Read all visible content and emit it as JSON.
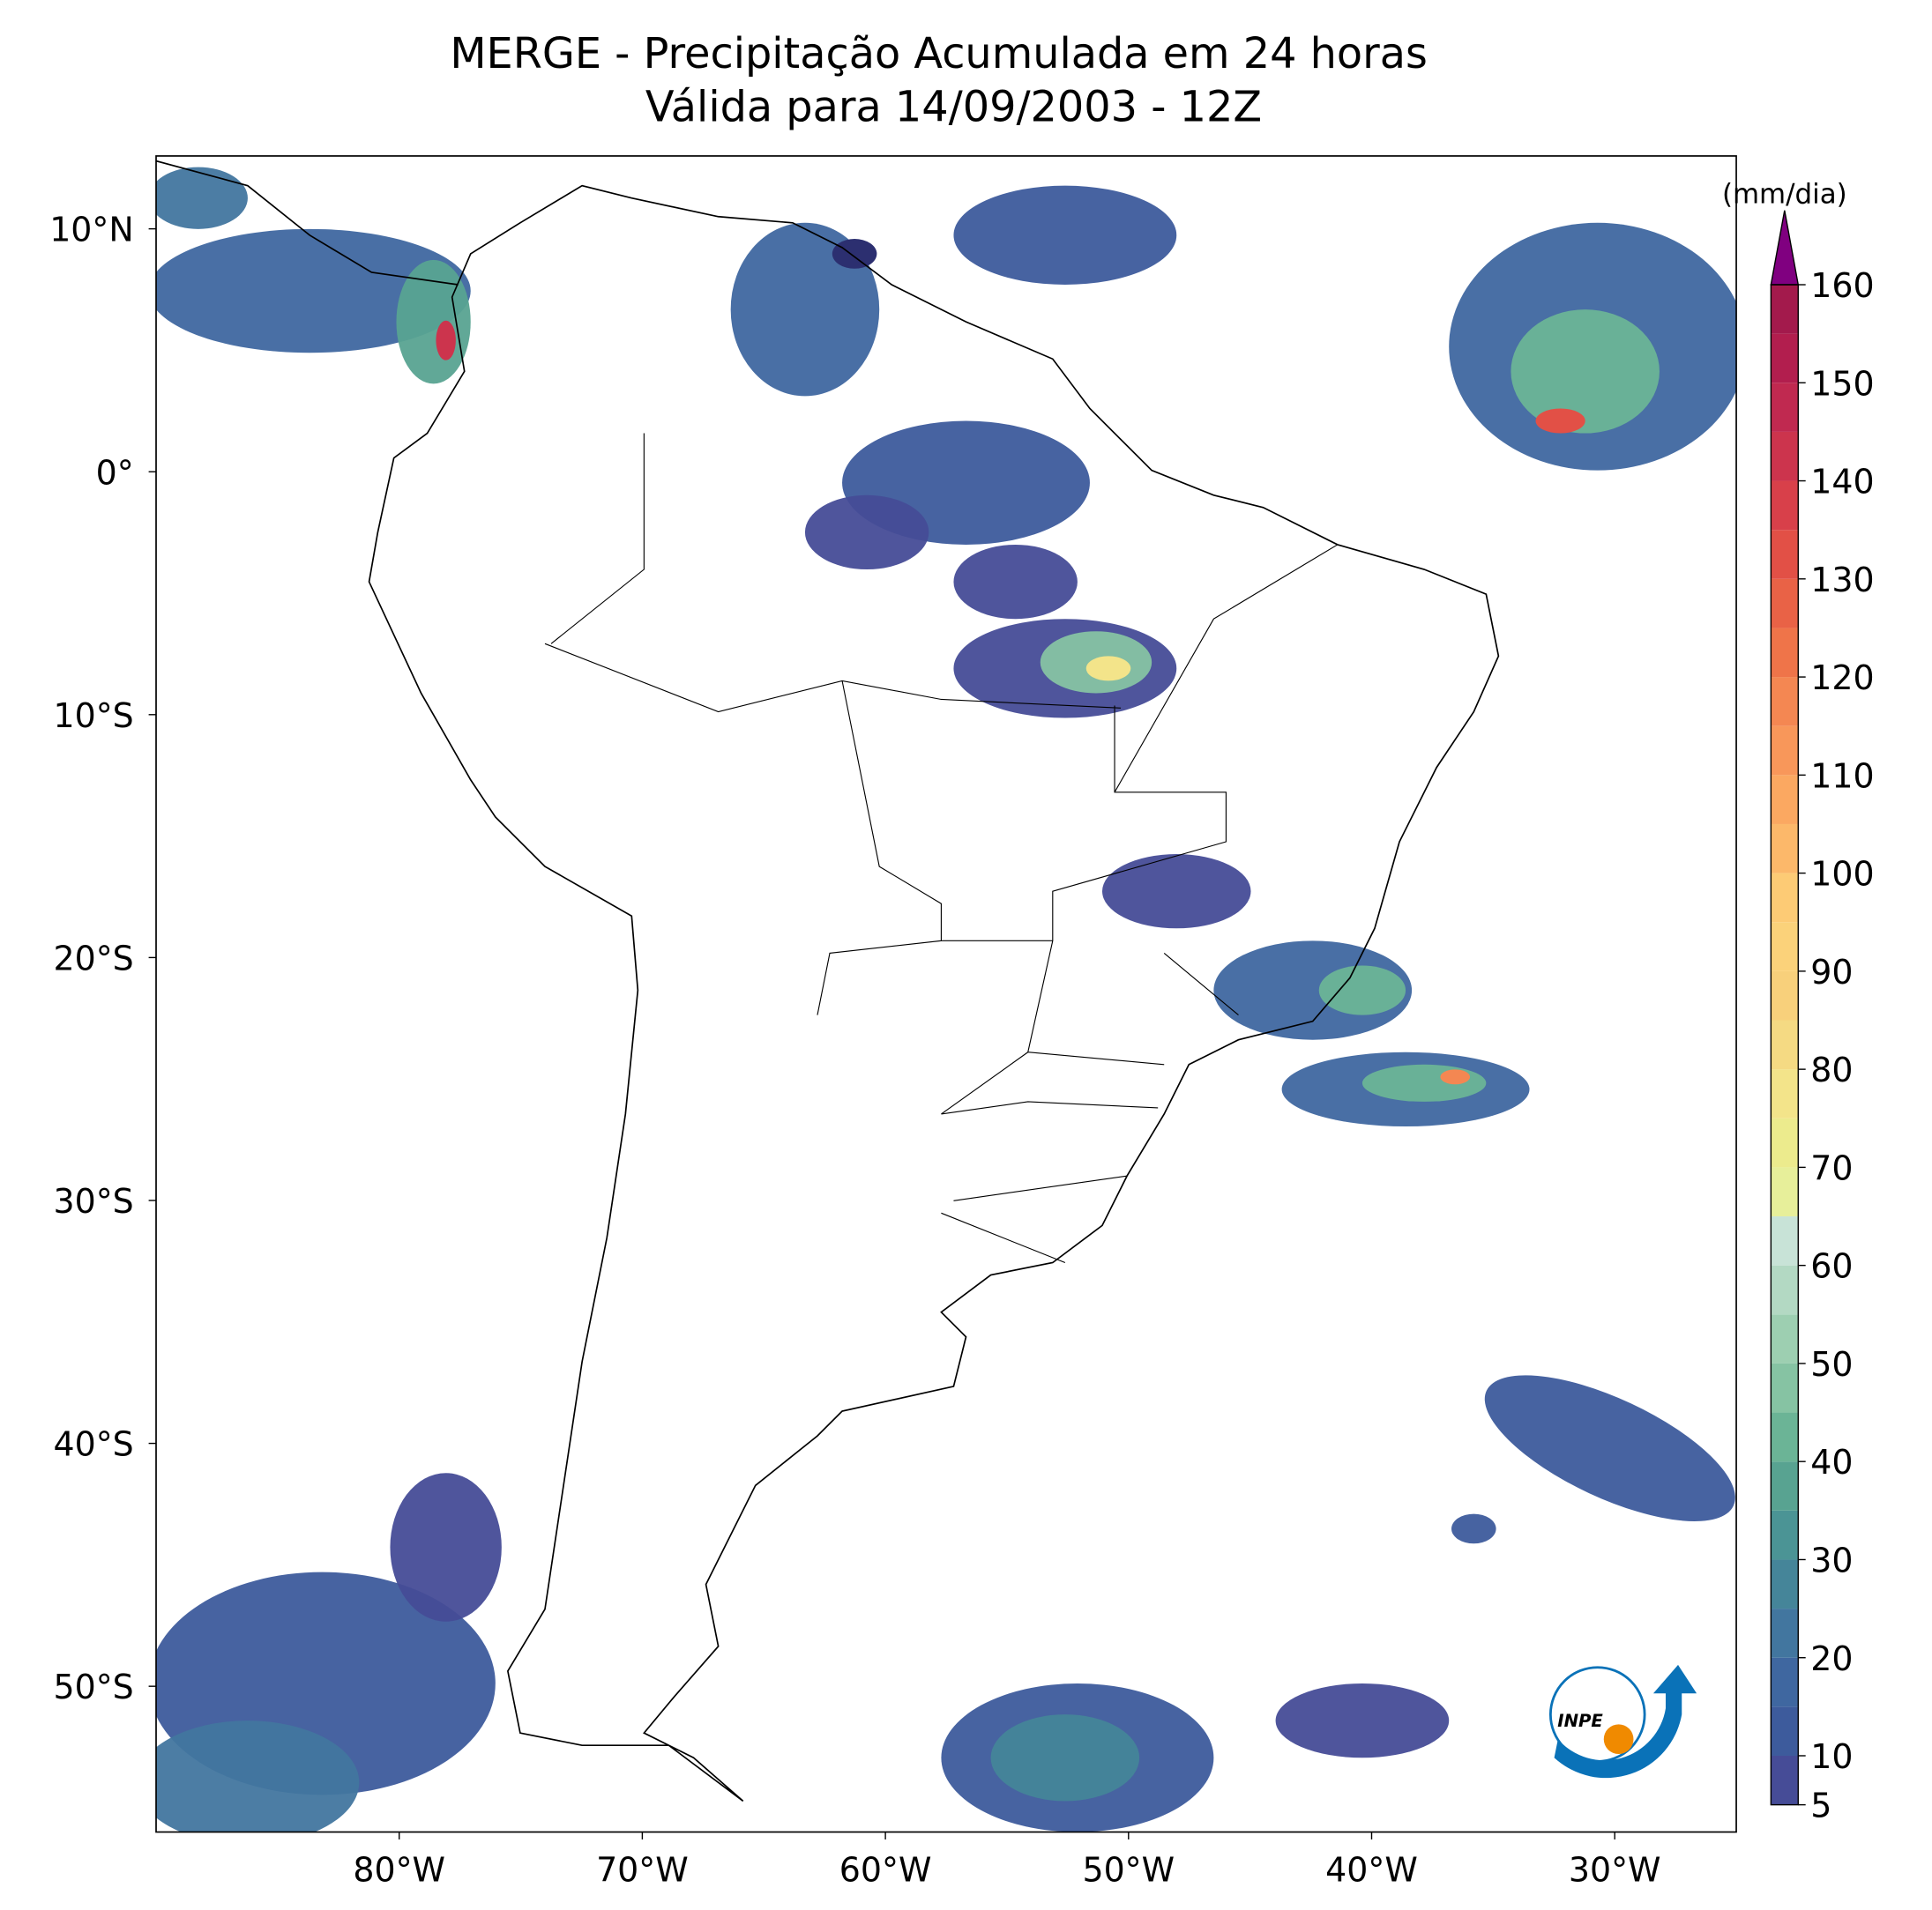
{
  "chart_data": {
    "type": "map",
    "title": "MERGE - Precipitação Acumulada em 24 horas",
    "subtitle": "Válida para 14/09/2003 - 12Z",
    "xlim": [
      -90,
      -25
    ],
    "xticks": [
      {
        "value": -80,
        "label": "80°W"
      },
      {
        "value": -70,
        "label": "70°W"
      },
      {
        "value": -60,
        "label": "60°W"
      },
      {
        "value": -50,
        "label": "50°W"
      },
      {
        "value": -40,
        "label": "40°W"
      },
      {
        "value": -30,
        "label": "30°W"
      }
    ],
    "ylim": [
      -56,
      13
    ],
    "yticks": [
      {
        "value": 10,
        "label": "10°N"
      },
      {
        "value": 0,
        "label": "0°"
      },
      {
        "value": -10,
        "label": "10°S"
      },
      {
        "value": -20,
        "label": "20°S"
      },
      {
        "value": -30,
        "label": "30°S"
      },
      {
        "value": -40,
        "label": "40°S"
      },
      {
        "value": -50,
        "label": "50°S"
      }
    ],
    "colorbar": {
      "label": "(mm/dia)",
      "levels": [
        5,
        10,
        15,
        20,
        25,
        30,
        35,
        40,
        45,
        50,
        55,
        60,
        65,
        70,
        75,
        80,
        85,
        90,
        95,
        100,
        105,
        110,
        115,
        120,
        125,
        130,
        135,
        140,
        145,
        150,
        155,
        160
      ],
      "colors": [
        "#464c97",
        "#3d5b9c",
        "#3f67a0",
        "#42769f",
        "#458599",
        "#4b9495",
        "#58a391",
        "#6bb496",
        "#86c3a3",
        "#9dcfb1",
        "#b3d9c3",
        "#c8e3d7",
        "#e7ef9a",
        "#eceb8d",
        "#f3e48a",
        "#f5da83",
        "#f8d07b",
        "#fbd27a",
        "#fdcb75",
        "#fcb86a",
        "#fba861",
        "#f8975a",
        "#f48752",
        "#ef7449",
        "#e96246",
        "#e25046",
        "#d8404a",
        "#cc344d",
        "#c02950",
        "#b21e4e",
        "#a31a4c"
      ],
      "extend_color": "#800080",
      "ticks": [
        5,
        10,
        20,
        30,
        40,
        50,
        60,
        70,
        80,
        90,
        100,
        110,
        120,
        130,
        140,
        150,
        160
      ]
    },
    "logo_text": "INPE"
  }
}
